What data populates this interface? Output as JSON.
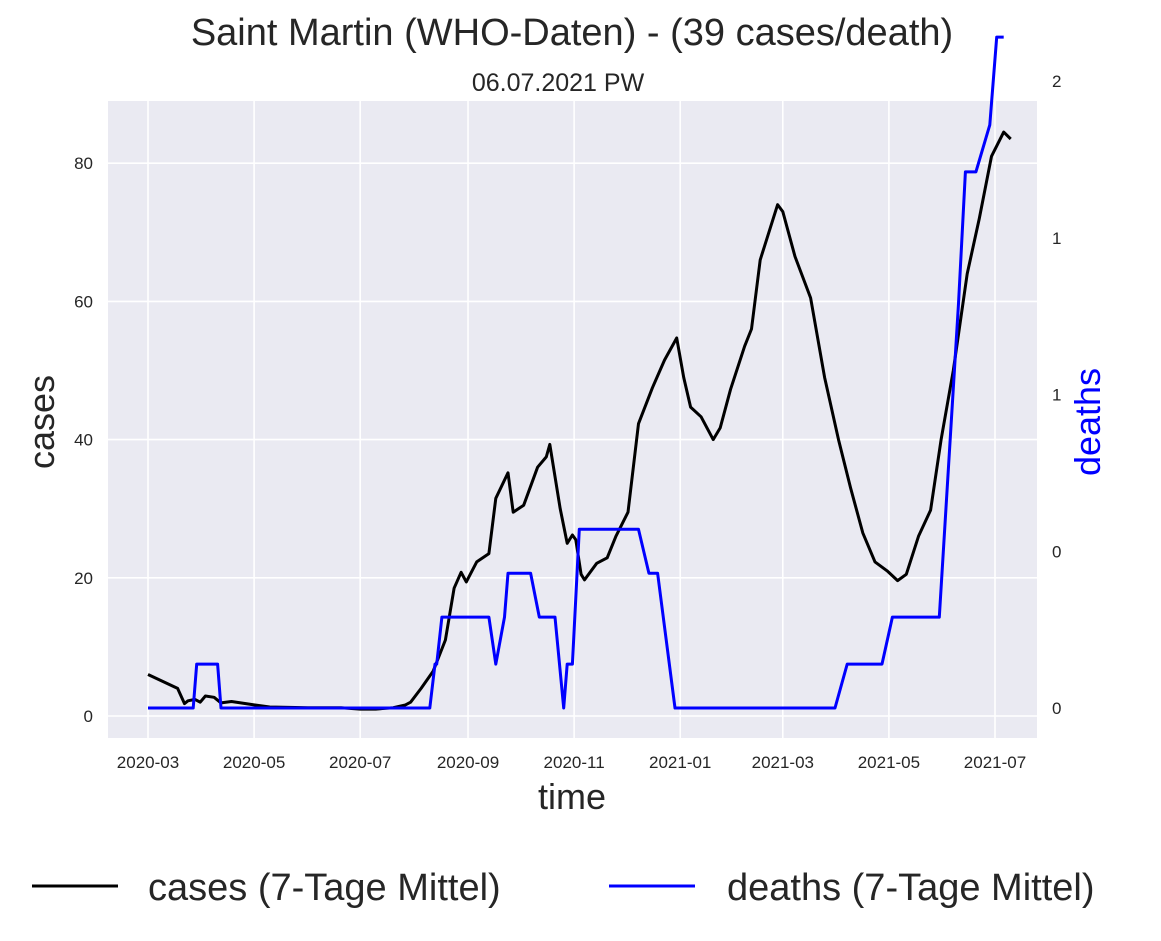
{
  "chart_data": {
    "type": "line",
    "title": "Saint Martin (WHO-Daten) - (39 cases/death)",
    "subtitle": "06.07.2021 PW",
    "xlabel": "time",
    "ylabel": "cases",
    "y2label": "deaths",
    "x_ticks": [
      "2020-03",
      "2020-05",
      "2020-07",
      "2020-09",
      "2020-11",
      "2021-01",
      "2021-03",
      "2021-05",
      "2021-07"
    ],
    "y_ticks": [
      "0",
      "20",
      "40",
      "60",
      "80"
    ],
    "y2_ticks": [
      "0",
      "0",
      "1",
      "1",
      "2"
    ],
    "ylim": [
      -3,
      88
    ],
    "grid": true,
    "legend_position": "bottom",
    "colors": {
      "cases": "#000000",
      "deaths": "#0000ff",
      "plot_bg": "#eaeaf2",
      "grid": "#ffffff"
    },
    "series": [
      {
        "name": "cases (7-Tage Mittel)",
        "axis": "left",
        "points": [
          [
            "2020-03-01",
            6
          ],
          [
            "2020-03-18",
            4
          ],
          [
            "2020-03-22",
            1.8
          ],
          [
            "2020-03-24",
            2.2
          ],
          [
            "2020-03-28",
            2.4
          ],
          [
            "2020-03-31",
            2
          ],
          [
            "2020-04-03",
            2.9
          ],
          [
            "2020-04-08",
            2.7
          ],
          [
            "2020-04-12",
            1.9
          ],
          [
            "2020-04-18",
            2.1
          ],
          [
            "2020-05-01",
            1.6
          ],
          [
            "2020-05-10",
            1.3
          ],
          [
            "2020-06-01",
            1.2
          ],
          [
            "2020-06-20",
            1.2
          ],
          [
            "2020-07-01",
            1
          ],
          [
            "2020-07-10",
            1
          ],
          [
            "2020-07-20",
            1.2
          ],
          [
            "2020-07-27",
            1.6
          ],
          [
            "2020-07-30",
            2
          ],
          [
            "2020-08-05",
            4
          ],
          [
            "2020-08-12",
            6.5
          ],
          [
            "2020-08-19",
            11
          ],
          [
            "2020-08-24",
            18.5
          ],
          [
            "2020-08-28",
            20.8
          ],
          [
            "2020-08-31",
            19.4
          ],
          [
            "2020-09-06",
            22.3
          ],
          [
            "2020-09-13",
            23.5
          ],
          [
            "2020-09-17",
            31.5
          ],
          [
            "2020-09-24",
            35.2
          ],
          [
            "2020-09-27",
            29.5
          ],
          [
            "2020-10-03",
            30.5
          ],
          [
            "2020-10-11",
            36
          ],
          [
            "2020-10-16",
            37.5
          ],
          [
            "2020-10-18",
            39.3
          ],
          [
            "2020-10-24",
            30
          ],
          [
            "2020-10-28",
            25
          ],
          [
            "2020-10-31",
            26.2
          ],
          [
            "2020-11-02",
            25.5
          ],
          [
            "2020-11-05",
            20.5
          ],
          [
            "2020-11-07",
            19.7
          ],
          [
            "2020-11-14",
            22.1
          ],
          [
            "2020-11-20",
            22.9
          ],
          [
            "2020-11-25",
            26
          ],
          [
            "2020-12-02",
            29.5
          ],
          [
            "2020-12-08",
            42.3
          ],
          [
            "2020-12-16",
            47.5
          ],
          [
            "2020-12-23",
            51.5
          ],
          [
            "2020-12-30",
            54.7
          ],
          [
            "2021-01-03",
            49
          ],
          [
            "2021-01-07",
            44.7
          ],
          [
            "2021-01-13",
            43.3
          ],
          [
            "2021-01-20",
            40
          ],
          [
            "2021-01-24",
            41.7
          ],
          [
            "2021-01-30",
            47.3
          ],
          [
            "2021-02-07",
            53.5
          ],
          [
            "2021-02-11",
            56
          ],
          [
            "2021-02-16",
            66
          ],
          [
            "2021-02-26",
            74
          ],
          [
            "2021-03-01",
            73
          ],
          [
            "2021-03-08",
            66.5
          ],
          [
            "2021-03-17",
            60.5
          ],
          [
            "2021-03-25",
            49
          ],
          [
            "2021-04-02",
            40
          ],
          [
            "2021-04-09",
            33
          ],
          [
            "2021-04-16",
            26.5
          ],
          [
            "2021-04-23",
            22.3
          ],
          [
            "2021-04-30",
            21
          ],
          [
            "2021-05-06",
            19.6
          ],
          [
            "2021-05-11",
            20.5
          ],
          [
            "2021-05-18",
            26
          ],
          [
            "2021-05-25",
            29.8
          ],
          [
            "2021-05-31",
            40
          ],
          [
            "2021-06-07",
            50
          ],
          [
            "2021-06-15",
            64
          ],
          [
            "2021-06-22",
            72
          ],
          [
            "2021-06-29",
            81
          ],
          [
            "2021-07-06",
            84.5
          ],
          [
            "2021-07-10",
            83.5
          ]
        ]
      },
      {
        "name": "deaths (7-Tage Mittel)",
        "axis": "right",
        "points": [
          [
            "2020-03-01",
            0
          ],
          [
            "2020-03-27",
            0
          ],
          [
            "2020-03-29",
            0.14
          ],
          [
            "2020-04-10",
            0.14
          ],
          [
            "2020-04-12",
            0
          ],
          [
            "2020-08-10",
            0
          ],
          [
            "2020-08-13",
            0.14
          ],
          [
            "2020-08-14",
            0.14
          ],
          [
            "2020-08-17",
            0.29
          ],
          [
            "2020-09-13",
            0.29
          ],
          [
            "2020-09-17",
            0.14
          ],
          [
            "2020-09-22",
            0.29
          ],
          [
            "2020-09-24",
            0.43
          ],
          [
            "2020-10-07",
            0.43
          ],
          [
            "2020-10-12",
            0.29
          ],
          [
            "2020-10-19",
            0.29
          ],
          [
            "2020-10-21",
            0.29
          ],
          [
            "2020-10-26",
            0
          ],
          [
            "2020-10-28",
            0.14
          ],
          [
            "2020-10-31",
            0.14
          ],
          [
            "2020-11-04",
            0.57
          ],
          [
            "2020-12-08",
            0.57
          ],
          [
            "2020-12-14",
            0.43
          ],
          [
            "2020-12-19",
            0.43
          ],
          [
            "2020-12-29",
            0
          ],
          [
            "2021-03-24",
            0
          ],
          [
            "2021-03-31",
            0
          ],
          [
            "2021-04-07",
            0.14
          ],
          [
            "2021-04-27",
            0.14
          ],
          [
            "2021-05-03",
            0.29
          ],
          [
            "2021-05-30",
            0.29
          ],
          [
            "2021-06-10",
            1.29
          ],
          [
            "2021-06-14",
            1.71
          ],
          [
            "2021-06-20",
            1.71
          ],
          [
            "2021-06-28",
            1.86
          ],
          [
            "2021-07-02",
            2.14
          ],
          [
            "2021-07-06",
            2.14
          ]
        ]
      }
    ]
  }
}
